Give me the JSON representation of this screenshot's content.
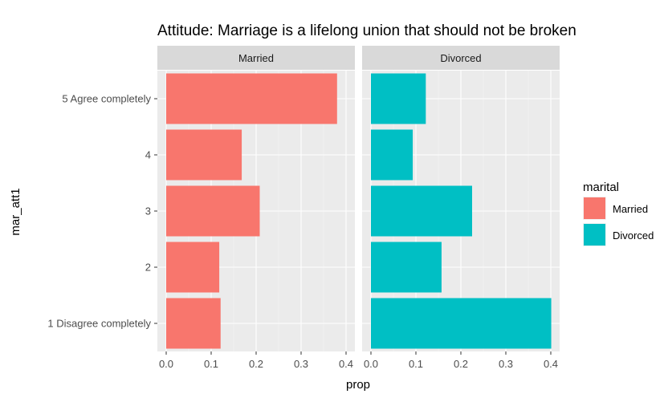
{
  "chart_data": {
    "type": "bar",
    "orientation": "horizontal",
    "title": "Attitude: Marriage is a lifelong union that should not be broken",
    "xlabel": "prop",
    "ylabel": "mar_att1",
    "categories": [
      "5 Agree completely",
      "4",
      "3",
      "2",
      "1 Disagree completely"
    ],
    "xlim": [
      0,
      0.4
    ],
    "xticks": [
      "0.0",
      "0.1",
      "0.2",
      "0.3",
      "0.4"
    ],
    "grid": true,
    "legend": {
      "title": "marital",
      "placement": "right",
      "entries": [
        "Married",
        "Divorced"
      ]
    },
    "facets": [
      {
        "name": "Married",
        "color": "#F8766D",
        "values": [
          0.38,
          0.168,
          0.208,
          0.118,
          0.121
        ]
      },
      {
        "name": "Divorced",
        "color": "#00BFC4",
        "values": [
          0.122,
          0.093,
          0.225,
          0.157,
          0.401
        ]
      }
    ]
  }
}
